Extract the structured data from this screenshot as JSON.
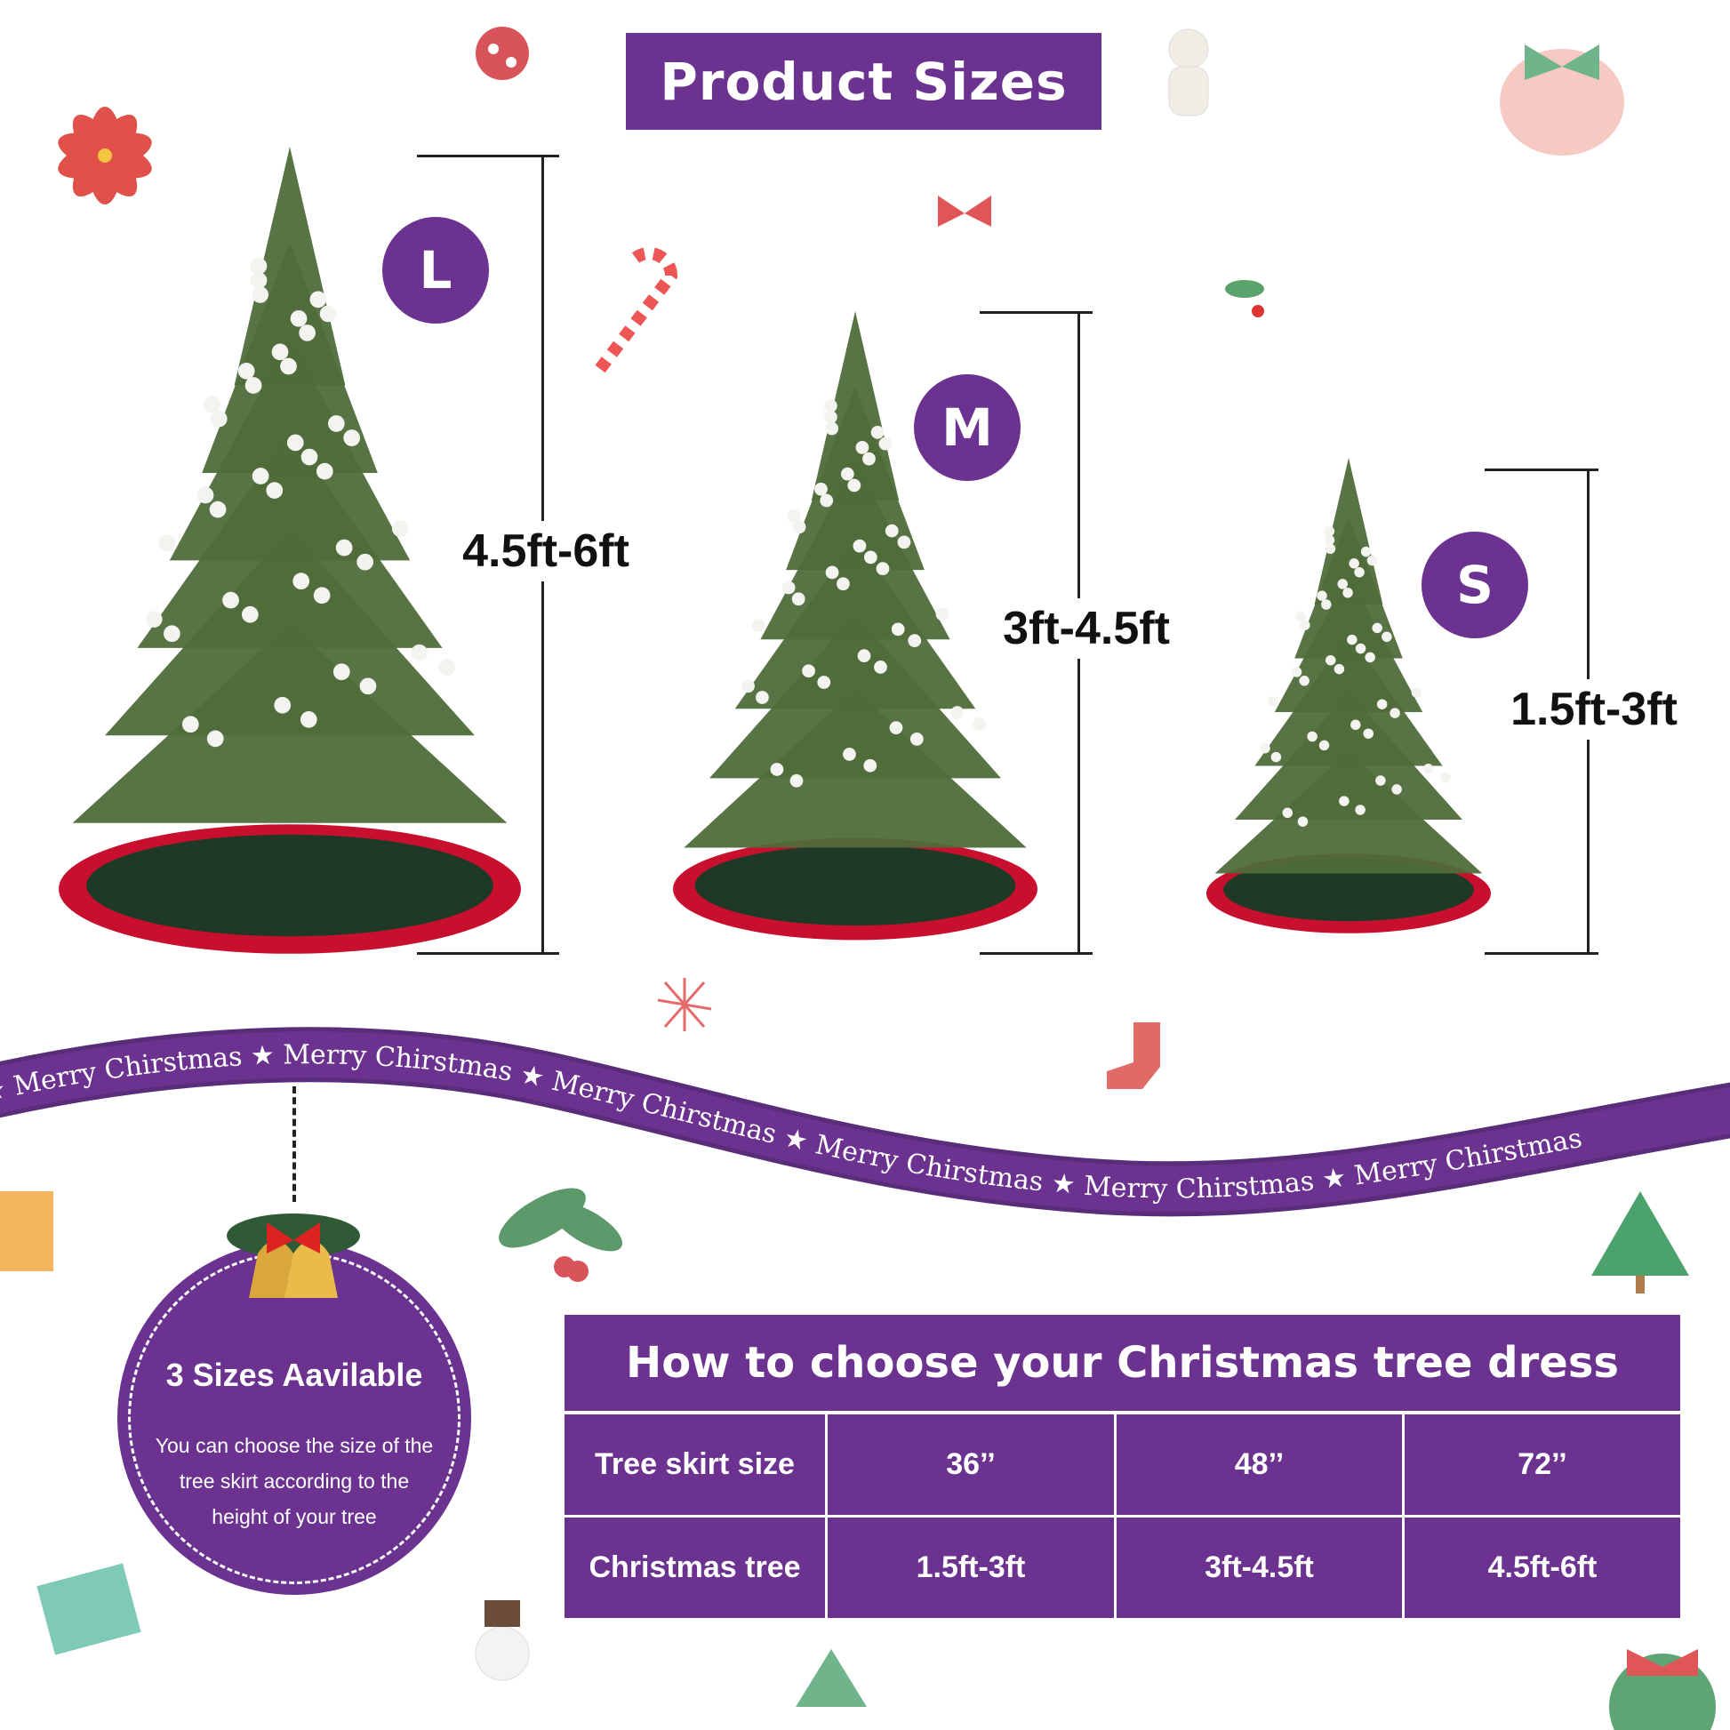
{
  "title": "Product Sizes",
  "sizes": [
    {
      "badge": "L",
      "range": "4.5ft-6ft"
    },
    {
      "badge": "M",
      "range": "3ft-4.5ft"
    },
    {
      "badge": "S",
      "range": "1.5ft-3ft"
    }
  ],
  "ribbon": {
    "text": "Merry Chirstmas"
  },
  "info_badge": {
    "title": "3 Sizes Aavilable",
    "description": "You can choose the size of the tree skirt according to the height of your tree"
  },
  "table": {
    "title": "How to choose your Christmas tree dress",
    "rows": [
      {
        "label": "Tree skirt size",
        "values": [
          "36’’",
          "48’’",
          "72’’"
        ]
      },
      {
        "label": "Christmas tree",
        "values": [
          "1.5ft-3ft",
          "3ft-4.5ft",
          "4.5ft-6ft"
        ]
      }
    ]
  },
  "colors": {
    "brand_purple": "#6b3290",
    "tree_green": "#4f6b3a",
    "skirt_red": "#c8102e",
    "skirt_green": "#1e3a26"
  }
}
